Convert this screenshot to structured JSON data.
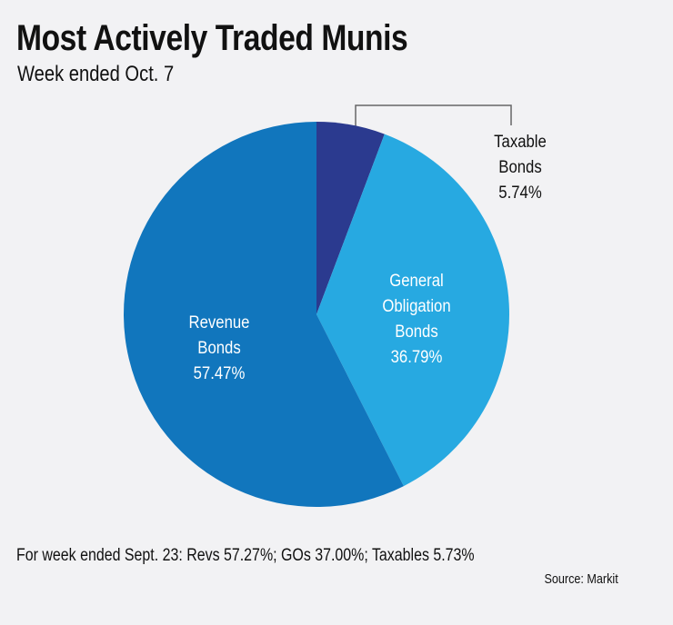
{
  "chart_data": {
    "type": "pie",
    "title": "Most Actively Traded Munis",
    "subtitle": "Week ended Oct. 7",
    "categories": [
      "Taxable Bonds",
      "General Obligation Bonds",
      "Revenue Bonds"
    ],
    "values": [
      5.74,
      36.79,
      57.47
    ],
    "value_labels": [
      "5.74%",
      "36.79%",
      "57.47%"
    ],
    "colors": [
      "#2b3a8f",
      "#27a9e1",
      "#1176bd"
    ],
    "note": "For week ended Sept. 23: Revs 57.27%; GOs 37.00%; Taxables 5.73%",
    "source": "Source: Markit"
  }
}
